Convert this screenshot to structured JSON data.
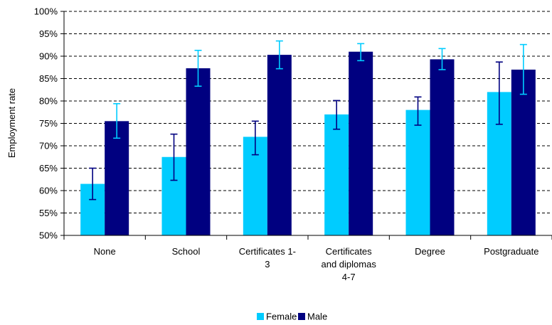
{
  "chart_data": {
    "type": "bar",
    "title": "",
    "xlabel": "",
    "ylabel": "Employment rate",
    "ylim": [
      50,
      100
    ],
    "y_ticks": [
      "50%",
      "55%",
      "60%",
      "65%",
      "70%",
      "75%",
      "80%",
      "85%",
      "90%",
      "95%",
      "100%"
    ],
    "y_tick_values": [
      50,
      55,
      60,
      65,
      70,
      75,
      80,
      85,
      90,
      95,
      100
    ],
    "grid": true,
    "legend_position": "bottom",
    "categories": [
      [
        "None"
      ],
      [
        "School"
      ],
      [
        "Certificates 1-",
        "3"
      ],
      [
        "Certificates",
        "and diplomas",
        "4-7"
      ],
      [
        "Degree"
      ],
      [
        "Postgraduate"
      ]
    ],
    "series": [
      {
        "name": "Female",
        "color": "#00ccff",
        "error_bar_color": "#000080",
        "values": [
          61.5,
          67.5,
          72.0,
          77.0,
          78.0,
          82.0
        ],
        "error_low": [
          58.0,
          62.3,
          68.0,
          73.7,
          74.6,
          74.8
        ],
        "error_high": [
          65.0,
          72.6,
          75.5,
          80.1,
          80.9,
          88.7
        ]
      },
      {
        "name": "Male",
        "color": "#000080",
        "error_bar_color": "#00ccff",
        "values": [
          75.5,
          87.3,
          90.3,
          91.0,
          89.3,
          87.0
        ],
        "error_low": [
          71.7,
          83.3,
          87.2,
          89.0,
          87.0,
          81.5
        ],
        "error_high": [
          79.4,
          91.3,
          93.4,
          92.8,
          91.7,
          92.6
        ]
      }
    ]
  }
}
